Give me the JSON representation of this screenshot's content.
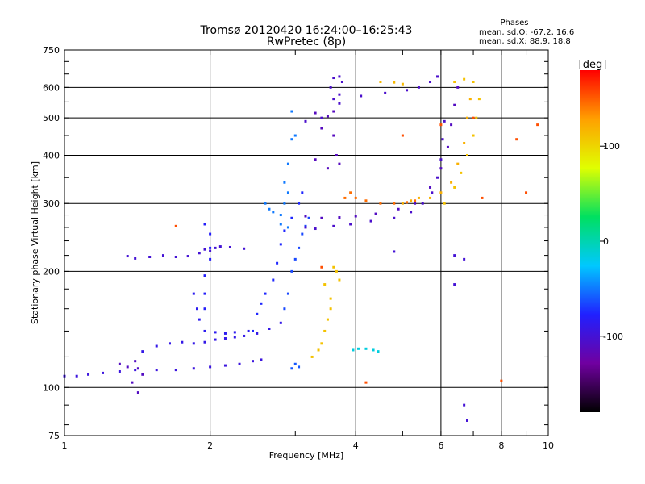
{
  "chart_data": {
    "type": "scatter",
    "title": "Tromsø 20120420 16:24:00–16:25:43",
    "subtitle": "RwPretec (8p)",
    "xlabel": "Frequency [MHz]",
    "ylabel": "Stationary phase Virtual Height [km]",
    "x_scale": "log",
    "y_scale": "log",
    "xlim": [
      1,
      10
    ],
    "ylim": [
      75,
      750
    ],
    "xticks": [
      1,
      2,
      4,
      6,
      8,
      10
    ],
    "yticks": [
      75,
      100,
      200,
      300,
      400,
      500,
      600,
      750
    ],
    "grid": true,
    "phase_stats": {
      "title": "Phases",
      "line_o": "mean, sd,O: -67.2, 16.6",
      "line_x": "mean, sd,X: 88.9, 18.8"
    },
    "colorbar": {
      "label": "[deg]",
      "min": -180,
      "max": 180,
      "ticks": [
        100,
        0,
        -100
      ],
      "colors": [
        "#000000",
        "#7000a0",
        "#2020ff",
        "#00c8ff",
        "#00e060",
        "#e0ff00",
        "#ffa000",
        "#ff0000"
      ]
    },
    "series": [
      {
        "phase": -95,
        "points": [
          [
            1.0,
            107
          ],
          [
            1.06,
            107
          ],
          [
            1.12,
            108
          ],
          [
            1.2,
            109
          ],
          [
            1.3,
            110
          ],
          [
            1.4,
            111
          ],
          [
            1.55,
            111
          ],
          [
            1.7,
            111
          ],
          [
            1.85,
            112
          ],
          [
            2.0,
            113
          ],
          [
            2.15,
            114
          ],
          [
            2.3,
            115
          ],
          [
            2.45,
            117
          ],
          [
            2.55,
            118
          ]
        ]
      },
      {
        "phase": -110,
        "points": [
          [
            1.3,
            115
          ],
          [
            1.35,
            113
          ],
          [
            1.4,
            117
          ],
          [
            1.42,
            112
          ],
          [
            1.45,
            108
          ],
          [
            1.38,
            103
          ],
          [
            1.42,
            97
          ]
        ]
      },
      {
        "phase": -90,
        "points": [
          [
            1.45,
            124
          ],
          [
            1.55,
            128
          ],
          [
            1.65,
            130
          ],
          [
            1.75,
            131
          ],
          [
            1.85,
            130
          ],
          [
            1.95,
            131
          ],
          [
            2.05,
            133
          ],
          [
            2.15,
            134
          ],
          [
            2.25,
            135
          ],
          [
            2.35,
            136
          ],
          [
            2.5,
            138
          ],
          [
            2.65,
            142
          ],
          [
            2.8,
            147
          ]
        ]
      },
      {
        "phase": -85,
        "points": [
          [
            1.85,
            175
          ],
          [
            1.88,
            160
          ],
          [
            1.9,
            150
          ],
          [
            1.95,
            140
          ],
          [
            2.05,
            139
          ],
          [
            2.15,
            138
          ],
          [
            2.25,
            139
          ],
          [
            2.4,
            140
          ]
        ]
      },
      {
        "phase": -100,
        "points": [
          [
            1.35,
            219
          ],
          [
            1.4,
            216
          ],
          [
            1.5,
            218
          ],
          [
            1.6,
            220
          ],
          [
            1.7,
            218
          ],
          [
            1.8,
            219
          ],
          [
            1.9,
            223
          ],
          [
            1.95,
            228
          ],
          [
            2.0,
            226
          ],
          [
            2.05,
            230
          ],
          [
            2.1,
            232
          ],
          [
            2.2,
            231
          ],
          [
            2.35,
            229
          ]
        ]
      },
      {
        "phase": -80,
        "points": [
          [
            1.95,
            265
          ],
          [
            2.0,
            250
          ],
          [
            2.0,
            230
          ],
          [
            2.0,
            215
          ],
          [
            1.95,
            195
          ],
          [
            1.95,
            175
          ],
          [
            1.95,
            160
          ]
        ]
      },
      {
        "phase": -75,
        "points": [
          [
            2.45,
            140
          ],
          [
            2.5,
            155
          ],
          [
            2.55,
            165
          ],
          [
            2.6,
            175
          ],
          [
            2.7,
            190
          ],
          [
            2.75,
            210
          ],
          [
            2.8,
            235
          ],
          [
            2.85,
            255
          ],
          [
            2.95,
            275
          ],
          [
            3.05,
            300
          ],
          [
            3.1,
            320
          ]
        ]
      },
      {
        "phase": -50,
        "points": [
          [
            2.6,
            300
          ],
          [
            2.65,
            290
          ],
          [
            2.7,
            285
          ],
          [
            2.8,
            280
          ],
          [
            2.85,
            300
          ],
          [
            2.9,
            320
          ],
          [
            2.85,
            340
          ],
          [
            2.9,
            380
          ],
          [
            2.95,
            440
          ],
          [
            2.95,
            520
          ],
          [
            3.0,
            450
          ],
          [
            2.8,
            265
          ],
          [
            2.9,
            260
          ]
        ]
      },
      {
        "phase": -65,
        "points": [
          [
            2.85,
            160
          ],
          [
            2.9,
            175
          ],
          [
            2.95,
            200
          ],
          [
            3.0,
            215
          ],
          [
            3.05,
            230
          ],
          [
            3.1,
            250
          ],
          [
            3.15,
            262
          ],
          [
            3.2,
            275
          ]
        ]
      },
      {
        "phase": -105,
        "points": [
          [
            3.15,
            260
          ],
          [
            3.3,
            258
          ],
          [
            3.6,
            262
          ],
          [
            3.9,
            265
          ],
          [
            4.3,
            270
          ],
          [
            4.8,
            275
          ],
          [
            5.2,
            285
          ],
          [
            5.5,
            300
          ],
          [
            5.75,
            320
          ],
          [
            5.9,
            350
          ],
          [
            6.0,
            390
          ],
          [
            6.05,
            440
          ],
          [
            6.1,
            490
          ]
        ]
      },
      {
        "phase": -110,
        "points": [
          [
            3.15,
            278
          ],
          [
            3.4,
            275
          ],
          [
            3.7,
            276
          ],
          [
            4.0,
            278
          ],
          [
            4.4,
            282
          ],
          [
            4.9,
            290
          ],
          [
            5.3,
            300
          ],
          [
            5.7,
            330
          ],
          [
            6.0,
            370
          ],
          [
            6.2,
            420
          ],
          [
            6.3,
            480
          ],
          [
            6.4,
            540
          ],
          [
            6.5,
            600
          ]
        ]
      },
      {
        "phase": -105,
        "points": [
          [
            3.15,
            490
          ],
          [
            3.4,
            500
          ],
          [
            3.7,
            545
          ],
          [
            4.1,
            570
          ],
          [
            4.6,
            580
          ],
          [
            5.1,
            590
          ],
          [
            5.4,
            600
          ],
          [
            5.7,
            620
          ],
          [
            5.9,
            640
          ]
        ]
      },
      {
        "phase": -112,
        "points": [
          [
            3.3,
            515
          ],
          [
            3.5,
            505
          ],
          [
            3.6,
            520
          ],
          [
            3.65,
            400
          ],
          [
            3.7,
            380
          ],
          [
            3.5,
            370
          ],
          [
            3.6,
            450
          ],
          [
            3.4,
            470
          ],
          [
            3.3,
            390
          ]
        ]
      },
      {
        "phase": -105,
        "points": [
          [
            3.6,
            635
          ],
          [
            3.7,
            640
          ],
          [
            3.75,
            620
          ],
          [
            3.55,
            600
          ],
          [
            3.7,
            575
          ],
          [
            3.6,
            560
          ]
        ]
      },
      {
        "phase": 145,
        "points": [
          [
            3.8,
            310
          ],
          [
            3.9,
            320
          ],
          [
            4.0,
            310
          ],
          [
            4.2,
            305
          ],
          [
            4.5,
            300
          ],
          [
            4.8,
            300
          ],
          [
            5.1,
            302
          ],
          [
            5.3,
            305
          ]
        ]
      },
      {
        "phase": 120,
        "points": [
          [
            5.0,
            300
          ],
          [
            5.2,
            305
          ],
          [
            5.4,
            310
          ],
          [
            5.7,
            310
          ],
          [
            6.0,
            320
          ],
          [
            6.3,
            340
          ],
          [
            6.5,
            380
          ],
          [
            6.7,
            430
          ],
          [
            6.8,
            500
          ],
          [
            6.9,
            560
          ]
        ]
      },
      {
        "phase": 110,
        "points": [
          [
            6.1,
            300
          ],
          [
            6.4,
            330
          ],
          [
            6.6,
            360
          ],
          [
            6.8,
            400
          ],
          [
            7.0,
            450
          ],
          [
            7.1,
            500
          ],
          [
            7.2,
            560
          ],
          [
            7.0,
            620
          ],
          [
            6.7,
            630
          ],
          [
            6.4,
            620
          ]
        ]
      },
      {
        "phase": 115,
        "points": [
          [
            4.5,
            620
          ],
          [
            4.8,
            618
          ],
          [
            5.0,
            612
          ]
        ]
      },
      {
        "phase": 110,
        "points": [
          [
            3.25,
            120
          ],
          [
            3.35,
            125
          ],
          [
            3.4,
            130
          ],
          [
            3.45,
            140
          ],
          [
            3.5,
            150
          ],
          [
            3.55,
            160
          ],
          [
            3.55,
            170
          ],
          [
            3.45,
            185
          ]
        ]
      },
      {
        "phase": 110,
        "points": [
          [
            3.6,
            205
          ],
          [
            3.7,
            190
          ],
          [
            3.65,
            200
          ]
        ]
      },
      {
        "phase": -15,
        "points": [
          [
            3.95,
            125
          ],
          [
            4.05,
            126
          ],
          [
            4.2,
            126
          ],
          [
            4.35,
            125
          ],
          [
            4.45,
            124
          ]
        ]
      },
      {
        "phase": -60,
        "points": [
          [
            2.95,
            112
          ],
          [
            3.05,
            113
          ],
          [
            3.0,
            115
          ]
        ]
      },
      {
        "phase": -100,
        "points": [
          [
            6.4,
            220
          ],
          [
            6.7,
            215
          ],
          [
            4.8,
            225
          ],
          [
            6.4,
            185
          ],
          [
            6.7,
            90
          ],
          [
            6.8,
            82
          ]
        ]
      },
      {
        "phase": 155,
        "points": [
          [
            1.7,
            262
          ],
          [
            3.4,
            205
          ],
          [
            4.2,
            103
          ],
          [
            5.0,
            450
          ],
          [
            6.0,
            480
          ],
          [
            7.0,
            500
          ],
          [
            8.6,
            440
          ],
          [
            9.0,
            320
          ],
          [
            9.5,
            480
          ],
          [
            7.3,
            310
          ],
          [
            8.0,
            104
          ]
        ]
      }
    ]
  }
}
